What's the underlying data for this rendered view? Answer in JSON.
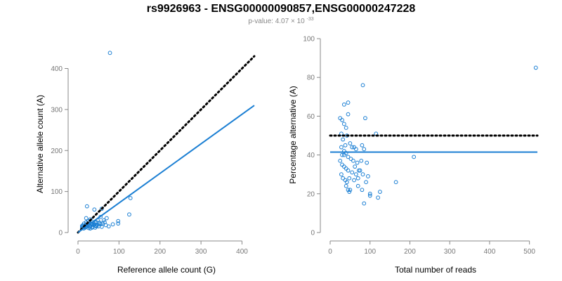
{
  "title": "rs9926963 - ENSG00000090857,ENSG00000247228",
  "subtitle": {
    "prefix": "p-value: 4.07",
    "times": "×",
    "base": "10",
    "exponent": "-33"
  },
  "colors": {
    "series": "#1b7fd3",
    "reference": "#000000",
    "axis": "#888888",
    "tick_text": "#777777"
  },
  "chart_data": [
    {
      "type": "scatter",
      "title": "",
      "xlabel": "Reference allele count (G)",
      "ylabel": "Alternative allele count (A)",
      "xlim": [
        0,
        430
      ],
      "ylim": [
        0,
        430
      ],
      "xticks": [
        0,
        100,
        200,
        300,
        400
      ],
      "yticks": [
        0,
        100,
        200,
        300,
        400
      ],
      "grid": false,
      "points": [
        [
          78,
          438
        ],
        [
          22,
          64
        ],
        [
          128,
          84
        ],
        [
          125,
          44
        ],
        [
          40,
          56
        ],
        [
          58,
          58
        ],
        [
          63,
          30
        ],
        [
          98,
          28
        ],
        [
          98,
          22
        ],
        [
          55,
          38
        ],
        [
          48,
          30
        ],
        [
          70,
          35
        ],
        [
          75,
          15
        ],
        [
          85,
          20
        ],
        [
          60,
          22
        ],
        [
          45,
          25
        ],
        [
          35,
          20
        ],
        [
          30,
          32
        ],
        [
          25,
          28
        ],
        [
          20,
          25
        ],
        [
          18,
          18
        ],
        [
          15,
          22
        ],
        [
          12,
          15
        ],
        [
          10,
          12
        ],
        [
          14,
          10
        ],
        [
          22,
          15
        ],
        [
          28,
          14
        ],
        [
          32,
          22
        ],
        [
          38,
          18
        ],
        [
          42,
          12
        ],
        [
          50,
          15
        ],
        [
          55,
          20
        ],
        [
          65,
          25
        ],
        [
          20,
          35
        ],
        [
          30,
          10
        ],
        [
          35,
          12
        ],
        [
          40,
          20
        ],
        [
          45,
          15
        ],
        [
          25,
          18
        ],
        [
          18,
          12
        ],
        [
          16,
          16
        ],
        [
          24,
          20
        ],
        [
          27,
          24
        ],
        [
          33,
          27
        ],
        [
          36,
          14
        ],
        [
          44,
          17
        ],
        [
          52,
          22
        ],
        [
          58,
          14
        ],
        [
          68,
          18
        ],
        [
          15,
          13
        ],
        [
          12,
          18
        ],
        [
          10,
          16
        ],
        [
          20,
          14
        ],
        [
          26,
          11
        ],
        [
          30,
          16
        ],
        [
          34,
          19
        ],
        [
          38,
          23
        ],
        [
          42,
          26
        ],
        [
          47,
          19
        ],
        [
          53,
          24
        ]
      ],
      "lines": [
        {
          "kind": "reference",
          "style": "dotted",
          "x": [
            0,
            430
          ],
          "y": [
            0,
            430
          ]
        },
        {
          "kind": "fit",
          "style": "solid",
          "x": [
            0,
            430
          ],
          "y": [
            0,
            310
          ]
        }
      ]
    },
    {
      "type": "scatter",
      "title": "",
      "xlabel": "Total number of reads",
      "ylabel": "Percentage alternative (A)",
      "xlim": [
        0,
        520
      ],
      "ylim": [
        0,
        100
      ],
      "xticks": [
        0,
        100,
        200,
        300,
        400,
        500
      ],
      "yticks": [
        0,
        20,
        40,
        60,
        80,
        100
      ],
      "grid": false,
      "points": [
        [
          516,
          85
        ],
        [
          82,
          76
        ],
        [
          45,
          67
        ],
        [
          35,
          66
        ],
        [
          45,
          61
        ],
        [
          25,
          59
        ],
        [
          30,
          58
        ],
        [
          88,
          59
        ],
        [
          35,
          56
        ],
        [
          40,
          54
        ],
        [
          28,
          51
        ],
        [
          32,
          48
        ],
        [
          115,
          51
        ],
        [
          42,
          50
        ],
        [
          50,
          46
        ],
        [
          38,
          45
        ],
        [
          55,
          44
        ],
        [
          60,
          44
        ],
        [
          65,
          43
        ],
        [
          80,
          45
        ],
        [
          85,
          43
        ],
        [
          30,
          40
        ],
        [
          35,
          42
        ],
        [
          40,
          41
        ],
        [
          45,
          39
        ],
        [
          52,
          38
        ],
        [
          58,
          37
        ],
        [
          68,
          36
        ],
        [
          78,
          37
        ],
        [
          92,
          36
        ],
        [
          210,
          39
        ],
        [
          25,
          37
        ],
        [
          30,
          35
        ],
        [
          35,
          34
        ],
        [
          40,
          33
        ],
        [
          45,
          32
        ],
        [
          55,
          31
        ],
        [
          65,
          30
        ],
        [
          75,
          32
        ],
        [
          82,
          30
        ],
        [
          95,
          29
        ],
        [
          28,
          30
        ],
        [
          32,
          28
        ],
        [
          38,
          27
        ],
        [
          42,
          26
        ],
        [
          48,
          28
        ],
        [
          60,
          27
        ],
        [
          70,
          28
        ],
        [
          90,
          26
        ],
        [
          165,
          26
        ],
        [
          40,
          24
        ],
        [
          45,
          22
        ],
        [
          50,
          22
        ],
        [
          48,
          21
        ],
        [
          70,
          24
        ],
        [
          80,
          22
        ],
        [
          100,
          20
        ],
        [
          125,
          21
        ],
        [
          120,
          18
        ],
        [
          85,
          15
        ],
        [
          100,
          19
        ],
        [
          35,
          40
        ],
        [
          28,
          44
        ],
        [
          62,
          34
        ],
        [
          72,
          32
        ]
      ],
      "lines": [
        {
          "kind": "reference",
          "style": "dotted",
          "x": [
            0,
            520
          ],
          "y": [
            50,
            50
          ]
        },
        {
          "kind": "fit",
          "style": "solid",
          "x": [
            0,
            520
          ],
          "y": [
            41.5,
            41.5
          ]
        }
      ]
    }
  ]
}
